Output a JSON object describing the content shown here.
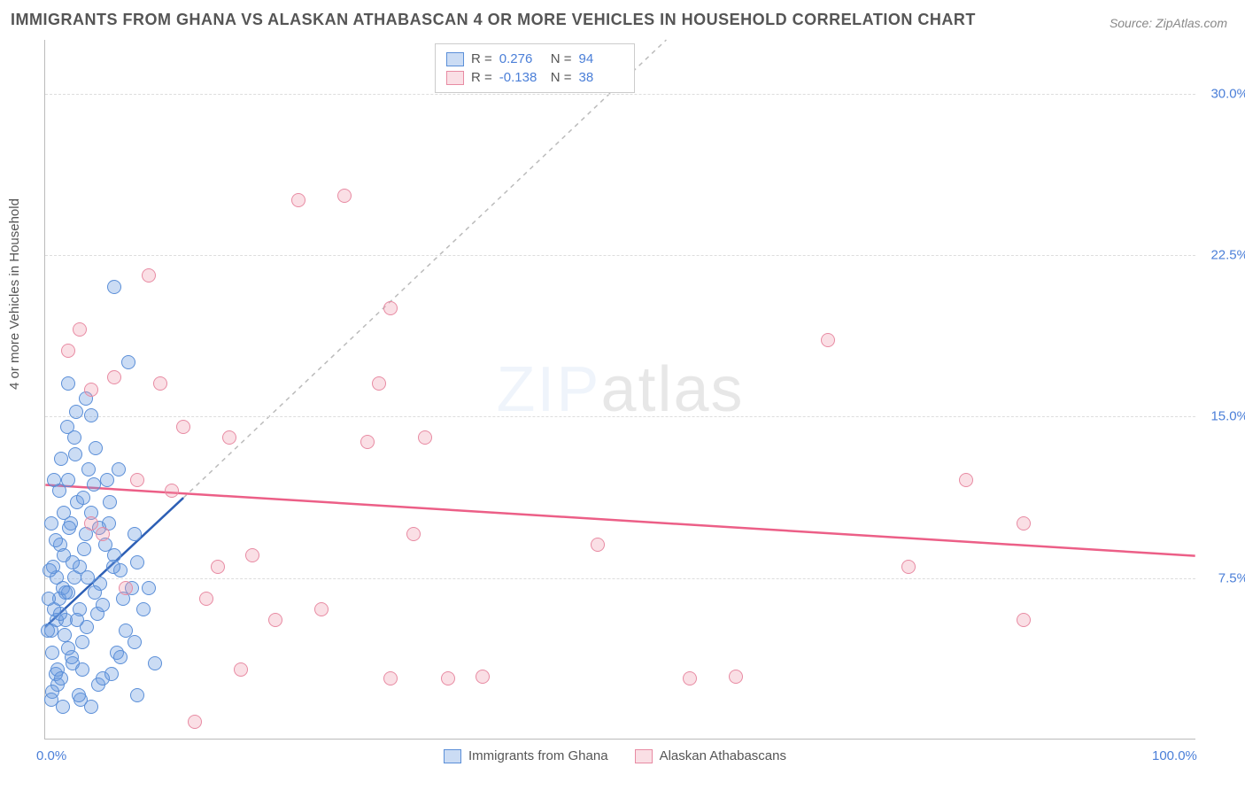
{
  "title": "IMMIGRANTS FROM GHANA VS ALASKAN ATHABASCAN 4 OR MORE VEHICLES IN HOUSEHOLD CORRELATION CHART",
  "source": "Source: ZipAtlas.com",
  "ylabel": "4 or more Vehicles in Household",
  "watermark_a": "ZIP",
  "watermark_b": "atlas",
  "chart": {
    "type": "scatter",
    "xlim": [
      0,
      100
    ],
    "ylim": [
      0,
      32.5
    ],
    "xtick_labels": {
      "0": "0.0%",
      "100": "100.0%"
    },
    "ytick_values": [
      7.5,
      15.0,
      22.5,
      30.0
    ],
    "ytick_labels": [
      "7.5%",
      "15.0%",
      "22.5%",
      "30.0%"
    ],
    "background_color": "#ffffff",
    "grid_color": "#dddddd",
    "axis_color": "#bbbbbb",
    "label_color": "#555555",
    "tick_color": "#4b7fd8",
    "title_fontsize": 18,
    "label_fontsize": 15,
    "point_radius": 8,
    "series": [
      {
        "name": "Immigrants from Ghana",
        "fill": "rgba(107,155,224,0.35)",
        "stroke": "#5b8fd8",
        "R": "0.276",
        "N": "94",
        "trend": {
          "x1": 0,
          "y1": 5.2,
          "x2": 12,
          "y2": 11.2,
          "dashed_ext": {
            "x2": 54,
            "y2": 32.5
          },
          "color": "#2d5fb5",
          "dash_color": "#bbbbbb"
        },
        "points": [
          [
            0.5,
            5.0
          ],
          [
            0.8,
            6.0
          ],
          [
            1.0,
            5.5
          ],
          [
            1.2,
            6.5
          ],
          [
            0.6,
            4.0
          ],
          [
            1.5,
            7.0
          ],
          [
            2.0,
            6.8
          ],
          [
            1.8,
            5.5
          ],
          [
            2.5,
            7.5
          ],
          [
            3.0,
            8.0
          ],
          [
            1.3,
            9.0
          ],
          [
            2.2,
            10.0
          ],
          [
            3.5,
            9.5
          ],
          [
            4.0,
            10.5
          ],
          [
            2.8,
            11.0
          ],
          [
            1.6,
            8.5
          ],
          [
            0.9,
            3.0
          ],
          [
            1.1,
            2.5
          ],
          [
            2.4,
            3.5
          ],
          [
            3.2,
            4.5
          ],
          [
            4.5,
            5.8
          ],
          [
            5.0,
            6.2
          ],
          [
            2.0,
            12.0
          ],
          [
            3.8,
            12.5
          ],
          [
            1.4,
            13.0
          ],
          [
            2.6,
            13.2
          ],
          [
            4.2,
            11.8
          ],
          [
            5.5,
            10.0
          ],
          [
            6.0,
            8.5
          ],
          [
            3.0,
            6.0
          ],
          [
            1.7,
            4.8
          ],
          [
            2.3,
            3.8
          ],
          [
            4.8,
            7.2
          ],
          [
            5.2,
            9.0
          ],
          [
            6.5,
            7.8
          ],
          [
            3.6,
            5.2
          ],
          [
            1.0,
            7.5
          ],
          [
            0.7,
            8.0
          ],
          [
            2.1,
            9.8
          ],
          [
            3.3,
            11.2
          ],
          [
            1.9,
            14.5
          ],
          [
            2.7,
            15.2
          ],
          [
            4.4,
            13.5
          ],
          [
            0.5,
            10.0
          ],
          [
            1.2,
            11.5
          ],
          [
            6.8,
            6.5
          ],
          [
            7.5,
            7.0
          ],
          [
            8.0,
            8.2
          ],
          [
            3.1,
            1.8
          ],
          [
            4.6,
            2.5
          ],
          [
            5.8,
            3.0
          ],
          [
            2.9,
            2.0
          ],
          [
            1.5,
            1.5
          ],
          [
            6.2,
            4.0
          ],
          [
            7.0,
            5.0
          ],
          [
            8.5,
            6.0
          ],
          [
            4.0,
            15.0
          ],
          [
            0.8,
            12.0
          ],
          [
            1.6,
            10.5
          ],
          [
            5.4,
            12.0
          ],
          [
            0.3,
            6.5
          ],
          [
            0.4,
            7.8
          ],
          [
            2.5,
            14.0
          ],
          [
            3.4,
            8.8
          ],
          [
            0.6,
            2.2
          ],
          [
            1.1,
            3.2
          ],
          [
            7.8,
            9.5
          ],
          [
            9.0,
            7.0
          ],
          [
            0.2,
            5.0
          ],
          [
            4.3,
            6.8
          ],
          [
            5.6,
            11.0
          ],
          [
            6.4,
            12.5
          ],
          [
            1.8,
            6.8
          ],
          [
            2.4,
            8.2
          ],
          [
            3.7,
            7.5
          ],
          [
            0.9,
            9.2
          ],
          [
            1.3,
            5.8
          ],
          [
            2.0,
            4.2
          ],
          [
            4.7,
            9.8
          ],
          [
            5.9,
            8.0
          ],
          [
            3.2,
            3.2
          ],
          [
            1.4,
            2.8
          ],
          [
            0.5,
            1.8
          ],
          [
            2.8,
            5.5
          ],
          [
            6.0,
            21.0
          ],
          [
            2.0,
            16.5
          ],
          [
            7.2,
            17.5
          ],
          [
            3.5,
            15.8
          ],
          [
            8.0,
            2.0
          ],
          [
            9.5,
            3.5
          ],
          [
            4.0,
            1.5
          ],
          [
            5.0,
            2.8
          ],
          [
            6.5,
            3.8
          ],
          [
            7.8,
            4.5
          ]
        ]
      },
      {
        "name": "Alaskan Athabascans",
        "fill": "rgba(240,150,170,0.3)",
        "stroke": "#e88ba3",
        "R": "-0.138",
        "N": "38",
        "trend": {
          "x1": 0,
          "y1": 11.8,
          "x2": 100,
          "y2": 8.5,
          "color": "#ec5f87"
        },
        "points": [
          [
            2,
            18.0
          ],
          [
            5,
            9.5
          ],
          [
            4,
            16.2
          ],
          [
            6,
            16.8
          ],
          [
            8,
            12.0
          ],
          [
            9,
            21.5
          ],
          [
            10,
            16.5
          ],
          [
            11,
            11.5
          ],
          [
            12,
            14.5
          ],
          [
            14,
            6.5
          ],
          [
            15,
            8.0
          ],
          [
            16,
            14.0
          ],
          [
            18,
            8.5
          ],
          [
            20,
            5.5
          ],
          [
            22,
            25.0
          ],
          [
            26,
            25.2
          ],
          [
            28,
            13.8
          ],
          [
            29,
            16.5
          ],
          [
            30,
            20.0
          ],
          [
            32,
            9.5
          ],
          [
            30,
            2.8
          ],
          [
            35,
            2.8
          ],
          [
            38,
            2.9
          ],
          [
            48,
            9.0
          ],
          [
            56,
            2.8
          ],
          [
            60,
            2.9
          ],
          [
            68,
            18.5
          ],
          [
            75,
            8.0
          ],
          [
            80,
            12.0
          ],
          [
            85,
            10.0
          ],
          [
            85,
            5.5
          ],
          [
            4,
            10.0
          ],
          [
            7,
            7.0
          ],
          [
            3,
            19.0
          ],
          [
            13,
            0.8
          ],
          [
            17,
            3.2
          ],
          [
            24,
            6.0
          ],
          [
            33,
            14.0
          ]
        ]
      }
    ]
  }
}
